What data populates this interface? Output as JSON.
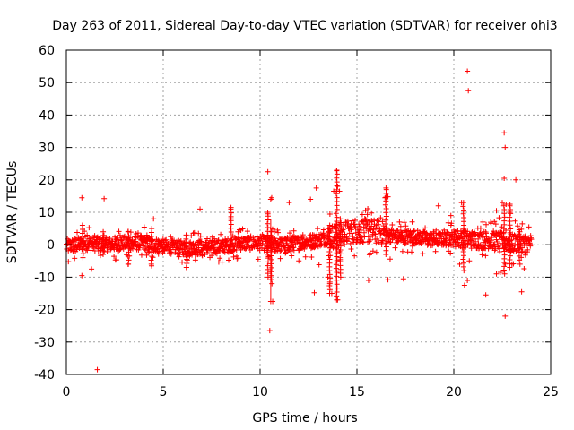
{
  "chart_data": {
    "type": "scatter",
    "title": "Day 263 of 2011, Sidereal Day-to-day VTEC variation (SDTVAR) for receiver ohi3",
    "xlabel": "GPS time / hours",
    "ylabel": "SDTVAR / TECUs",
    "xlim": [
      0,
      25
    ],
    "ylim": [
      -40,
      60
    ],
    "x_ticks": [
      0,
      5,
      10,
      15,
      20,
      25
    ],
    "y_ticks": [
      -40,
      -30,
      -20,
      -10,
      0,
      10,
      20,
      30,
      40,
      50,
      60
    ],
    "x_tick_labels": [
      "0",
      "5",
      "10",
      "15",
      "20",
      "25"
    ],
    "y_tick_labels": [
      "-40",
      "-30",
      "-20",
      "-10",
      "0",
      "10",
      "20",
      "30",
      "40",
      "50",
      "60"
    ],
    "grid": true,
    "marker": "+",
    "color": "#ff0000",
    "data_extent_hours": [
      0,
      24
    ],
    "baseline_trend": [
      {
        "x": 0.0,
        "y": -0.5
      },
      {
        "x": 1.0,
        "y": 0.5
      },
      {
        "x": 2.0,
        "y": 0.0
      },
      {
        "x": 3.0,
        "y": 0.5
      },
      {
        "x": 4.0,
        "y": 0.5
      },
      {
        "x": 5.0,
        "y": -0.5
      },
      {
        "x": 6.0,
        "y": -1.0
      },
      {
        "x": 7.0,
        "y": -1.0
      },
      {
        "x": 8.0,
        "y": -0.5
      },
      {
        "x": 9.0,
        "y": 0.5
      },
      {
        "x": 10.0,
        "y": 0.5
      },
      {
        "x": 11.0,
        "y": 0.0
      },
      {
        "x": 12.0,
        "y": 0.5
      },
      {
        "x": 13.0,
        "y": 1.5
      },
      {
        "x": 14.0,
        "y": 3.0
      },
      {
        "x": 15.0,
        "y": 4.5
      },
      {
        "x": 16.0,
        "y": 4.0
      },
      {
        "x": 17.0,
        "y": 2.5
      },
      {
        "x": 18.0,
        "y": 2.5
      },
      {
        "x": 19.0,
        "y": 1.5
      },
      {
        "x": 20.0,
        "y": 2.0
      },
      {
        "x": 21.0,
        "y": 1.5
      },
      {
        "x": 22.0,
        "y": 1.5
      },
      {
        "x": 23.0,
        "y": 0.5
      },
      {
        "x": 24.0,
        "y": 0.5
      }
    ],
    "outliers": [
      {
        "x": 0.8,
        "y": 14.5
      },
      {
        "x": 1.95,
        "y": 14.2
      },
      {
        "x": 1.6,
        "y": -38.5
      },
      {
        "x": 0.8,
        "y": -9.5
      },
      {
        "x": 1.3,
        "y": -7.5
      },
      {
        "x": 4.5,
        "y": 8.0
      },
      {
        "x": 6.9,
        "y": 11.0
      },
      {
        "x": 8.5,
        "y": 11.5
      },
      {
        "x": 8.5,
        "y": 8.0
      },
      {
        "x": 10.4,
        "y": 22.5
      },
      {
        "x": 10.55,
        "y": 14.0
      },
      {
        "x": 10.6,
        "y": 14.5
      },
      {
        "x": 10.4,
        "y": 9.5
      },
      {
        "x": 10.65,
        "y": -17.5
      },
      {
        "x": 10.55,
        "y": -17.5
      },
      {
        "x": 10.5,
        "y": -26.5
      },
      {
        "x": 10.9,
        "y": 4.5
      },
      {
        "x": 11.5,
        "y": 13.0
      },
      {
        "x": 12.6,
        "y": 14.0
      },
      {
        "x": 12.9,
        "y": 17.5
      },
      {
        "x": 12.8,
        "y": -14.8
      },
      {
        "x": 13.5,
        "y": -10.0
      },
      {
        "x": 13.6,
        "y": -12.0
      },
      {
        "x": 13.7,
        "y": -15.0
      },
      {
        "x": 13.8,
        "y": 16.5
      },
      {
        "x": 13.95,
        "y": 22.8
      },
      {
        "x": 14.0,
        "y": 18.0
      },
      {
        "x": 14.1,
        "y": 16.5
      },
      {
        "x": 14.0,
        "y": -17.0
      },
      {
        "x": 15.6,
        "y": -11.0
      },
      {
        "x": 16.45,
        "y": 14.5
      },
      {
        "x": 16.5,
        "y": 17.5
      },
      {
        "x": 16.6,
        "y": 14.8
      },
      {
        "x": 16.6,
        "y": -10.8
      },
      {
        "x": 17.4,
        "y": -10.5
      },
      {
        "x": 19.2,
        "y": 12.0
      },
      {
        "x": 19.85,
        "y": 9.0
      },
      {
        "x": 20.4,
        "y": 13.0
      },
      {
        "x": 20.7,
        "y": 53.5
      },
      {
        "x": 20.75,
        "y": 47.5
      },
      {
        "x": 20.3,
        "y": -6.0
      },
      {
        "x": 20.55,
        "y": -12.5
      },
      {
        "x": 20.7,
        "y": -11.0
      },
      {
        "x": 20.8,
        "y": -5.0
      },
      {
        "x": 21.65,
        "y": -15.5
      },
      {
        "x": 21.5,
        "y": 7.0
      },
      {
        "x": 22.2,
        "y": 10.5
      },
      {
        "x": 22.6,
        "y": 34.5
      },
      {
        "x": 22.65,
        "y": 30.0
      },
      {
        "x": 22.6,
        "y": 20.5
      },
      {
        "x": 22.5,
        "y": 13.0
      },
      {
        "x": 22.7,
        "y": 12.5
      },
      {
        "x": 22.9,
        "y": 12.5
      },
      {
        "x": 22.9,
        "y": 10.0
      },
      {
        "x": 22.65,
        "y": -22.0
      },
      {
        "x": 23.2,
        "y": 20.0
      },
      {
        "x": 23.5,
        "y": -14.5
      },
      {
        "x": 22.4,
        "y": -8.5
      },
      {
        "x": 22.2,
        "y": -9.0
      },
      {
        "x": 23.0,
        "y": -6.0
      },
      {
        "x": 3.2,
        "y": -6.0
      },
      {
        "x": 4.4,
        "y": -6.5
      },
      {
        "x": 6.2,
        "y": -7.0
      },
      {
        "x": 9.9,
        "y": -4.5
      },
      {
        "x": 12.0,
        "y": -5.0
      }
    ]
  }
}
